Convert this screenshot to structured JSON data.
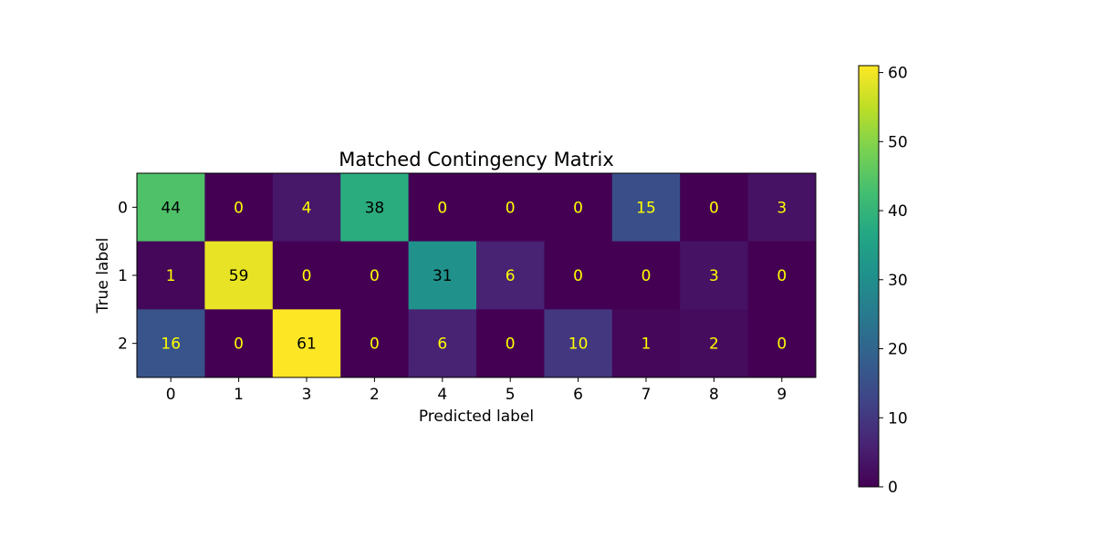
{
  "chart_data": {
    "type": "heatmap",
    "title": "Matched Contingency Matrix",
    "xlabel": "Predicted label",
    "ylabel": "True label",
    "x_categories": [
      "0",
      "1",
      "3",
      "2",
      "4",
      "5",
      "6",
      "7",
      "8",
      "9"
    ],
    "y_categories": [
      "0",
      "1",
      "2"
    ],
    "values": [
      [
        44,
        0,
        4,
        38,
        0,
        0,
        0,
        15,
        0,
        3
      ],
      [
        1,
        59,
        0,
        0,
        31,
        6,
        0,
        0,
        3,
        0
      ],
      [
        16,
        0,
        61,
        0,
        6,
        0,
        10,
        1,
        2,
        0
      ]
    ],
    "colorbar": {
      "colormap": "viridis",
      "range": [
        0,
        61
      ],
      "ticks": [
        0,
        10,
        20,
        30,
        40,
        50,
        60
      ]
    },
    "colors": {
      "text_light": "#ffff00",
      "text_dark": "#000000"
    }
  }
}
